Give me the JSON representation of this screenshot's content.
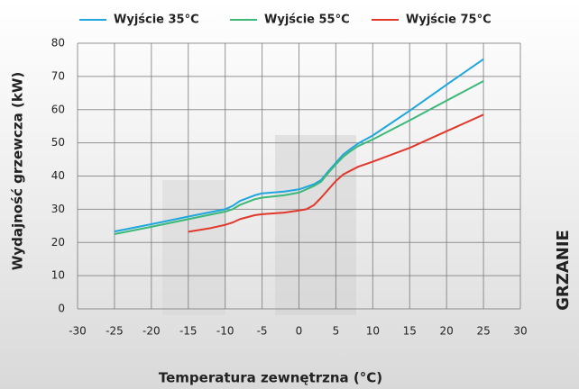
{
  "chart_data": {
    "type": "line",
    "xlabel": "Temperatura zewnętrzna (°C)",
    "ylabel": "Wydajność grzewcza (kW)",
    "side_label": "GRZANIE",
    "xlim": [
      -30,
      30
    ],
    "xticks": [
      -30,
      -25,
      -20,
      -15,
      -10,
      -5,
      0,
      5,
      10,
      15,
      20,
      25,
      30
    ],
    "ylim": [
      0,
      80
    ],
    "yticks": [
      0,
      10,
      20,
      30,
      40,
      50,
      60,
      70,
      80
    ],
    "grid": true,
    "series": [
      {
        "name": "Wyjście 35°C",
        "color": "#1ea6df",
        "x": [
          -25,
          -20,
          -15,
          -10,
          -9,
          -8,
          -6,
          -5,
          -2,
          0,
          2,
          3,
          4,
          5,
          6,
          7,
          8,
          10,
          15,
          20,
          25
        ],
        "values": [
          23.3,
          25.5,
          27.8,
          30,
          31,
          32.5,
          34.2,
          34.8,
          35.3,
          36,
          37.5,
          38.8,
          41.5,
          44,
          46.5,
          48.2,
          49.8,
          52.2,
          59.7,
          67.5,
          75.2
        ]
      },
      {
        "name": "Wyjście 55°C",
        "color": "#3cb878",
        "x": [
          -25,
          -20,
          -15,
          -10,
          -9,
          -8,
          -6,
          -5,
          -2,
          0,
          2,
          3,
          4,
          5,
          6,
          7,
          8,
          10,
          15,
          20,
          25
        ],
        "values": [
          22.5,
          24.7,
          27,
          29.3,
          30,
          31.3,
          33,
          33.5,
          34.2,
          35,
          37,
          38.3,
          41,
          43.5,
          45.8,
          47.5,
          49,
          51,
          56.8,
          62.7,
          68.6
        ]
      },
      {
        "name": "Wyjście 75°C",
        "color": "#e2382c",
        "x": [
          -15,
          -12,
          -10,
          -9,
          -8,
          -6,
          -5,
          -2,
          0,
          1,
          2,
          3,
          4,
          5,
          6,
          8,
          10,
          15,
          20,
          25
        ],
        "values": [
          23.2,
          24.3,
          25.3,
          26,
          27,
          28.2,
          28.5,
          29,
          29.6,
          30,
          31.2,
          33.5,
          36,
          38.5,
          40.5,
          42.8,
          44.3,
          48.5,
          53.5,
          58.5
        ]
      }
    ]
  }
}
